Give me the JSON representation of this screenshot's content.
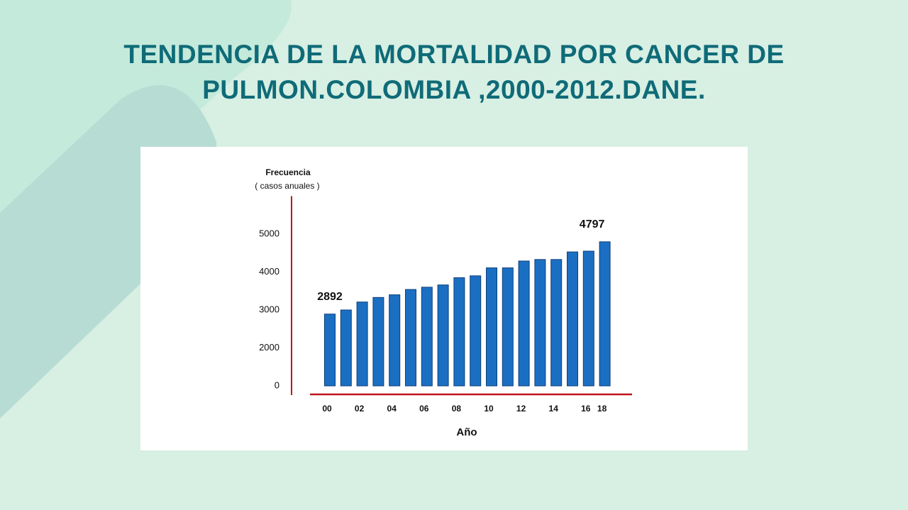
{
  "chart_data": {
    "type": "bar",
    "title": "TENDENCIA DE LA MORTALIDAD POR CANCER DE PULMON.COLOMBIA ,2000-2012.DANE.",
    "y_label": [
      "Frecuencia",
      "( casos anuales )"
    ],
    "x_label": "Año",
    "categories": [
      "00",
      null,
      "02",
      null,
      "04",
      null,
      "06",
      null,
      "08",
      null,
      "10",
      null,
      "12",
      null,
      "14",
      null,
      "16",
      "18"
    ],
    "values": [
      2892,
      3000,
      3210,
      3330,
      3400,
      3540,
      3600,
      3660,
      3850,
      3900,
      4110,
      4110,
      4290,
      4330,
      4330,
      4530,
      4550,
      4797
    ],
    "value_labels": [
      "2892",
      null,
      null,
      null,
      null,
      null,
      null,
      null,
      null,
      null,
      null,
      null,
      null,
      null,
      null,
      null,
      null,
      "4797"
    ],
    "color": "#1b6fc2",
    "axis_color": "#c0141c",
    "ylim": [
      0,
      6000
    ],
    "yticks": [
      0,
      2000,
      3000,
      4000,
      5000
    ]
  }
}
